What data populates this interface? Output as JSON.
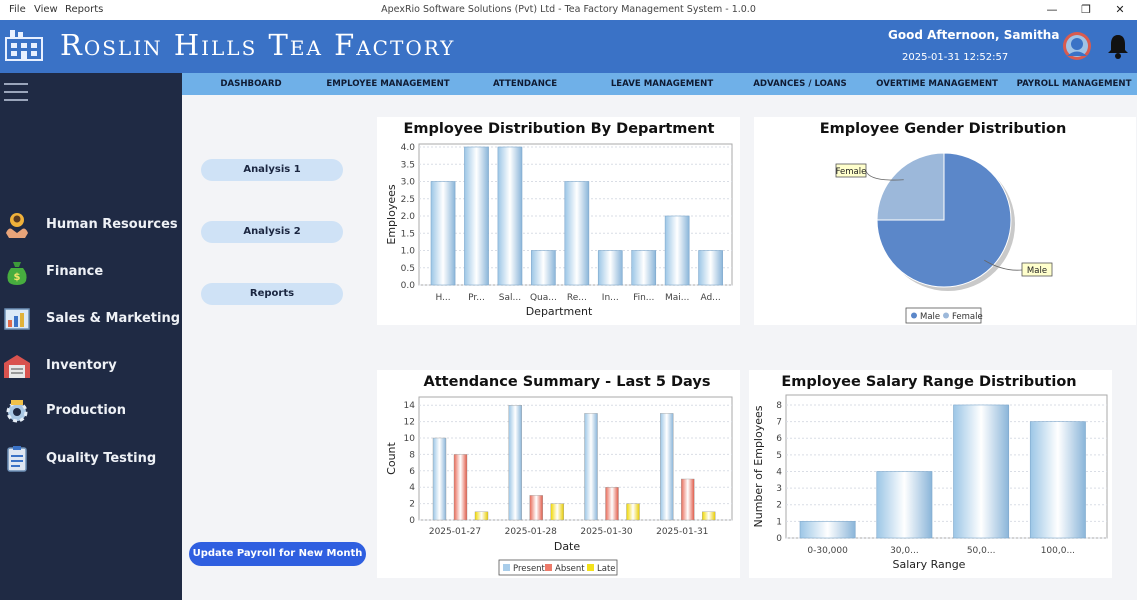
{
  "menubar": {
    "file": "File",
    "view": "View",
    "reports": "Reports"
  },
  "window_title": "ApexRio  Software  Solutions (Pvt) Ltd - Tea Factory Management System - 1.0.0",
  "window_controls": {
    "minimize": "—",
    "maximize": "❐",
    "close": "✕"
  },
  "header": {
    "app_title": "Roslin Hills Tea Factory",
    "greeting": "Good Afternoon,  Samitha",
    "datetime": "2025-01-31 12:52:57"
  },
  "nav": [
    "DASHBOARD",
    "EMPLOYEE MANAGEMENT",
    "ATTENDANCE",
    "LEAVE MANAGEMENT",
    "ADVANCES / LOANS",
    "OVERTIME MANAGEMENT",
    "PAYROLL MANAGEMENT"
  ],
  "sidebar": {
    "items": [
      {
        "label": "Human Resources",
        "icon": "hr-icon"
      },
      {
        "label": "Finance",
        "icon": "money-bag-icon"
      },
      {
        "label": "Sales & Marketing",
        "icon": "sales-chart-icon"
      },
      {
        "label": "Inventory",
        "icon": "warehouse-icon"
      },
      {
        "label": "Production",
        "icon": "production-gear-icon"
      },
      {
        "label": "Quality Testing",
        "icon": "clipboard-icon"
      }
    ]
  },
  "actions": {
    "analysis1": "Analysis 1",
    "analysis2": "Analysis 2",
    "reports": "Reports",
    "update_payroll": "Update Payroll for New Month"
  },
  "colors": {
    "header": "#3a72c6",
    "sidebar": "#1f2a44",
    "nav": "#6fb0e8",
    "present": "#a9cdea",
    "absent": "#ee7b6b",
    "late": "#f4e21a",
    "male": "#5b87c9",
    "female": "#9cb8da"
  },
  "chart_data": [
    {
      "id": "dept",
      "type": "bar",
      "title": "Employee Distribution By Department",
      "xlabel": "Department",
      "ylabel": "Employees",
      "categories": [
        "H...",
        "Pr...",
        "Sal...",
        "Qua...",
        "Re...",
        "In...",
        "Fin...",
        "Mai...",
        "Ad..."
      ],
      "values": [
        3,
        4,
        4,
        1,
        3,
        1,
        1,
        2,
        1
      ],
      "ylim": [
        0,
        4
      ],
      "yticks": [
        "0.0",
        "0.5",
        "1.0",
        "1.5",
        "2.0",
        "2.5",
        "3.0",
        "3.5",
        "4.0"
      ]
    },
    {
      "id": "gender",
      "type": "pie",
      "title": "Employee Gender Distribution",
      "labels": [
        "Male",
        "Female"
      ],
      "values": [
        75,
        25
      ],
      "legend": [
        "Male",
        "Female"
      ]
    },
    {
      "id": "attendance",
      "type": "bar",
      "title": "Attendance Summary - Last 5 Days",
      "xlabel": "Date",
      "ylabel": "Count",
      "categories": [
        "2025-01-27",
        "2025-01-28",
        "2025-01-30",
        "2025-01-31"
      ],
      "series": [
        {
          "name": "Present",
          "values": [
            10,
            14,
            13,
            13
          ]
        },
        {
          "name": "Absent",
          "values": [
            8,
            3,
            4,
            5
          ]
        },
        {
          "name": "Late",
          "values": [
            1,
            2,
            2,
            1
          ]
        }
      ],
      "ylim": [
        0,
        15
      ],
      "yticks": [
        "0",
        "2",
        "4",
        "6",
        "8",
        "10",
        "12",
        "14"
      ]
    },
    {
      "id": "salary",
      "type": "bar",
      "title": "Employee Salary Range Distribution",
      "xlabel": "Salary Range",
      "ylabel": "Number of Employees",
      "categories": [
        "0-30,000",
        "30,0...",
        "50,0...",
        "100,0..."
      ],
      "values": [
        1,
        4,
        8,
        7
      ],
      "ylim": [
        0,
        8.6
      ],
      "yticks": [
        "0",
        "1",
        "2",
        "3",
        "4",
        "5",
        "6",
        "7",
        "8"
      ]
    }
  ]
}
